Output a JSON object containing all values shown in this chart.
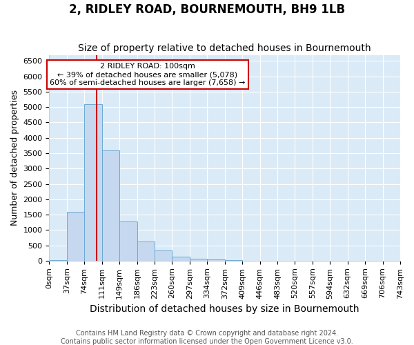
{
  "title": "2, RIDLEY ROAD, BOURNEMOUTH, BH9 1LB",
  "subtitle": "Size of property relative to detached houses in Bournemouth",
  "xlabel": "Distribution of detached houses by size in Bournemouth",
  "ylabel": "Number of detached properties",
  "footer_line1": "Contains HM Land Registry data © Crown copyright and database right 2024.",
  "footer_line2": "Contains public sector information licensed under the Open Government Licence v3.0.",
  "bin_labels": [
    "0sqm",
    "37sqm",
    "74sqm",
    "111sqm",
    "149sqm",
    "186sqm",
    "223sqm",
    "260sqm",
    "297sqm",
    "334sqm",
    "372sqm",
    "409sqm",
    "446sqm",
    "483sqm",
    "520sqm",
    "557sqm",
    "594sqm",
    "632sqm",
    "669sqm",
    "706sqm",
    "743sqm"
  ],
  "bar_heights": [
    20,
    1580,
    5100,
    3580,
    1280,
    620,
    330,
    130,
    70,
    30,
    20,
    0,
    0,
    0,
    0,
    0,
    0,
    0,
    0,
    0
  ],
  "bar_color": "#c5d8ef",
  "bar_edge_color": "#6aaad4",
  "red_line_x": 2.703,
  "annotation_title": "2 RIDLEY ROAD: 100sqm",
  "annotation_line1": "← 39% of detached houses are smaller (5,078)",
  "annotation_line2": "60% of semi-detached houses are larger (7,658) →",
  "annotation_box_facecolor": "#ffffff",
  "annotation_box_edgecolor": "#cc0000",
  "ylim": [
    0,
    6700
  ],
  "yticks": [
    0,
    500,
    1000,
    1500,
    2000,
    2500,
    3000,
    3500,
    4000,
    4500,
    5000,
    5500,
    6000,
    6500
  ],
  "figure_facecolor": "#ffffff",
  "axes_facecolor": "#daeaf7",
  "grid_color": "#ffffff",
  "title_fontsize": 12,
  "subtitle_fontsize": 10,
  "xlabel_fontsize": 10,
  "ylabel_fontsize": 9,
  "tick_fontsize": 8,
  "annotation_fontsize": 8,
  "footer_fontsize": 7
}
